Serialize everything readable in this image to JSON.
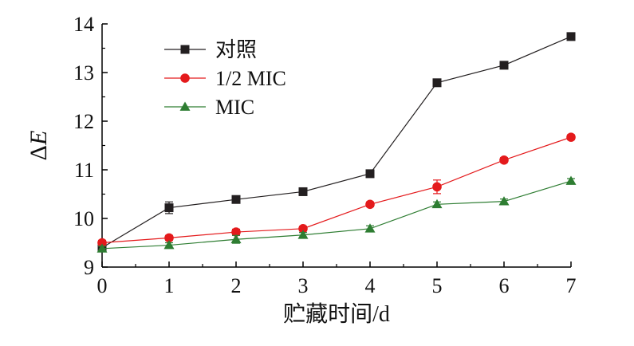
{
  "chart_data": {
    "type": "line",
    "xlabel": "贮藏时间/d",
    "ylabel": "ΔE",
    "xlim": [
      0,
      7
    ],
    "ylim": [
      9,
      14
    ],
    "x": [
      0,
      1,
      2,
      3,
      4,
      5,
      6,
      7
    ],
    "x_ticks": [
      0,
      1,
      2,
      3,
      4,
      5,
      6,
      7
    ],
    "y_ticks": [
      9,
      10,
      11,
      12,
      13,
      14
    ],
    "grid": false,
    "legend_position": "top-left",
    "series": [
      {
        "name": "对照",
        "color": "#231f20",
        "marker": "square",
        "values": [
          9.4,
          10.22,
          10.39,
          10.55,
          10.92,
          12.79,
          13.15,
          13.74
        ],
        "errors": [
          0.05,
          0.12,
          0.05,
          0.05,
          0.05,
          0.06,
          0.05,
          0.05
        ]
      },
      {
        "name": "1/2 MIC",
        "color": "#e41a1c",
        "marker": "circle",
        "values": [
          9.5,
          9.6,
          9.72,
          9.79,
          10.29,
          10.65,
          11.2,
          11.67
        ],
        "errors": [
          0.05,
          0.05,
          0.06,
          0.05,
          0.05,
          0.14,
          0.05,
          0.05
        ]
      },
      {
        "name": "MIC",
        "color": "#2e7d32",
        "marker": "triangle",
        "values": [
          9.38,
          9.45,
          9.57,
          9.66,
          9.79,
          10.29,
          10.35,
          10.77
        ],
        "errors": [
          0.05,
          0.05,
          0.08,
          0.05,
          0.06,
          0.05,
          0.05,
          0.05
        ]
      }
    ]
  }
}
